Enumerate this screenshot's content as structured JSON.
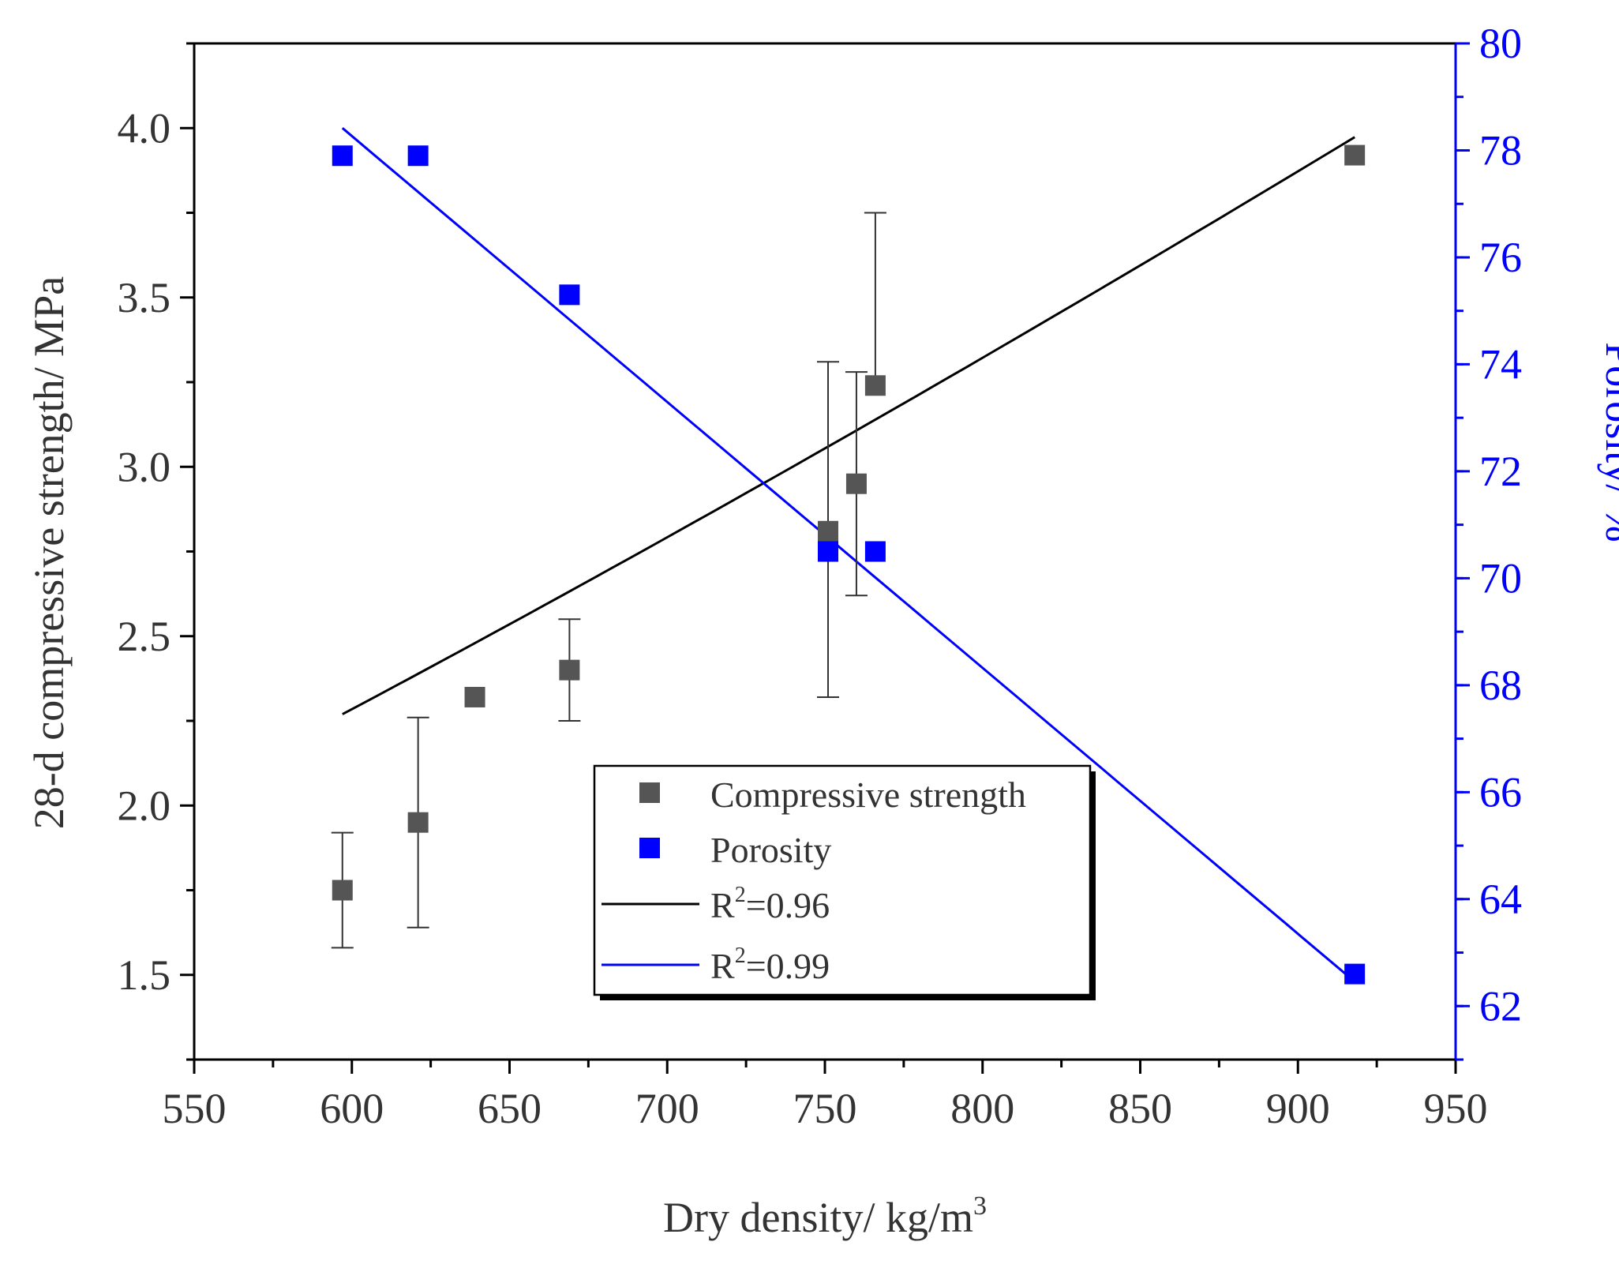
{
  "chart_data": {
    "type": "scatter",
    "title": "",
    "xlabel": "Dry density/ kg/m",
    "xlabel_superscript": "3",
    "ylabel_left": "28-d compressive strength/ MPa",
    "ylabel_right": "Porosity/ %",
    "xlim": [
      550,
      950
    ],
    "ylim_left": [
      1.25,
      4.25
    ],
    "ylim_right": [
      61,
      80
    ],
    "x_ticks": [
      "550",
      "600",
      "650",
      "700",
      "750",
      "800",
      "850",
      "900",
      "950"
    ],
    "x_tick_values": [
      550,
      600,
      650,
      700,
      750,
      800,
      850,
      900,
      950
    ],
    "y_left_ticks": [
      "1.5",
      "2.0",
      "2.5",
      "3.0",
      "3.5",
      "4.0"
    ],
    "y_left_tick_values": [
      1.5,
      2.0,
      2.5,
      3.0,
      3.5,
      4.0
    ],
    "y_right_ticks": [
      "62",
      "64",
      "66",
      "68",
      "70",
      "72",
      "74",
      "76",
      "78",
      "80"
    ],
    "y_right_tick_values": [
      62,
      64,
      66,
      68,
      70,
      72,
      74,
      76,
      78,
      80
    ],
    "grid": false,
    "legend_position": "bottom-center",
    "colors": {
      "strength": "#555555",
      "porosity": "#0000ff",
      "fit_strength": "#000000",
      "fit_porosity": "#0000ff",
      "axis_left": "#333333",
      "axis_right": "#0000ff"
    },
    "series": [
      {
        "name": "Compressive strength",
        "axis": "left",
        "marker": "square",
        "x": [
          597,
          621,
          639,
          669,
          751,
          760,
          766,
          918
        ],
        "y": [
          1.75,
          1.95,
          2.32,
          2.4,
          2.81,
          2.95,
          3.24,
          3.92
        ],
        "err_low": [
          1.58,
          1.64,
          null,
          2.25,
          2.32,
          2.62,
          null,
          null
        ],
        "err_high": [
          1.92,
          2.26,
          null,
          2.55,
          3.31,
          3.28,
          3.75,
          null
        ]
      },
      {
        "name": "Porosity",
        "axis": "right",
        "marker": "square",
        "x": [
          597,
          621,
          669,
          751,
          766,
          918
        ],
        "y": [
          77.9,
          77.9,
          75.3,
          70.5,
          70.5,
          62.6
        ]
      }
    ],
    "fits": [
      {
        "name": "R",
        "sup": "2",
        "suffix": "=0.96",
        "axis": "left",
        "curve": "power",
        "x_range": [
          597,
          918
        ],
        "a": 0.000553,
        "b": 1.3016
      },
      {
        "name": "R",
        "sup": "2",
        "suffix": "=0.99",
        "axis": "right",
        "curve": "linear",
        "x_range": [
          597,
          918
        ],
        "slope": -0.04972,
        "intercept": 108.1
      }
    ]
  }
}
